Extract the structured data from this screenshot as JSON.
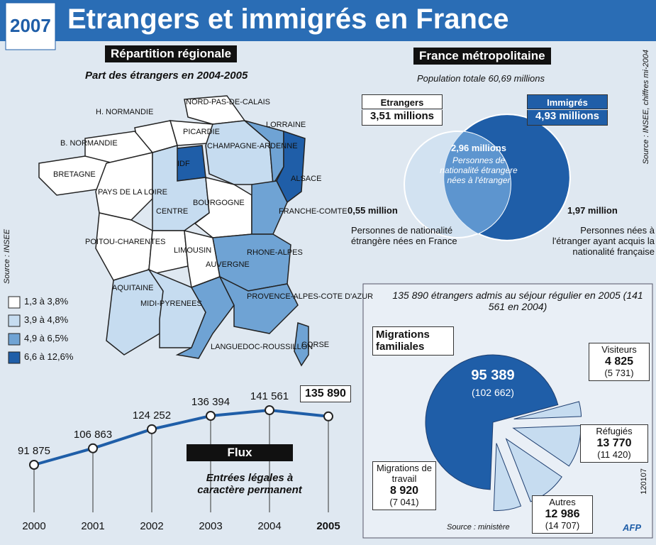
{
  "title": "Etrangers et immigrés en France",
  "logo": "2007",
  "map": {
    "heading": "Répartition régionale",
    "subtitle": "Part des étrangers en 2004-2005",
    "source": "Source : INSEE",
    "legend": [
      {
        "label": "1,3 à 3,8%",
        "color": "#ffffff"
      },
      {
        "label": "3,9 à 4,8%",
        "color": "#c6dcf0"
      },
      {
        "label": "4,9 à 6,5%",
        "color": "#6fa3d4"
      },
      {
        "label": "6,6 à 12,6%",
        "color": "#1f5ea8"
      }
    ],
    "regions": [
      {
        "name": "NORD-PAS-DE-CALAIS",
        "class": 0
      },
      {
        "name": "PICARDIE",
        "class": 0
      },
      {
        "name": "H. NORMANDIE",
        "class": 0
      },
      {
        "name": "B. NORMANDIE",
        "class": 0
      },
      {
        "name": "IDF",
        "class": 3
      },
      {
        "name": "CHAMPAGNE-ARDENNE",
        "class": 1
      },
      {
        "name": "LORRAINE",
        "class": 2
      },
      {
        "name": "ALSACE",
        "class": 3
      },
      {
        "name": "BRETAGNE",
        "class": 0
      },
      {
        "name": "PAYS DE LA LOIRE",
        "class": 0
      },
      {
        "name": "CENTRE",
        "class": 1
      },
      {
        "name": "BOURGOGNE",
        "class": 0
      },
      {
        "name": "FRANCHE-COMTE",
        "class": 2
      },
      {
        "name": "POITOU-CHARENTES",
        "class": 0
      },
      {
        "name": "LIMOUSIN",
        "class": 0
      },
      {
        "name": "AUVERGNE",
        "class": 0
      },
      {
        "name": "RHONE-ALPES",
        "class": 2
      },
      {
        "name": "AQUITAINE",
        "class": 1
      },
      {
        "name": "MIDI-PYRENEES",
        "class": 1
      },
      {
        "name": "LANGUEDOC-ROUSSILLON",
        "class": 2
      },
      {
        "name": "PROVENCE-ALPES-COTE D'AZUR",
        "class": 2
      },
      {
        "name": "CORSE",
        "class": 2
      }
    ]
  },
  "venn": {
    "heading": "France métropolitaine",
    "subtitle": "Population totale 60,69 millions",
    "source": "Source : INSEE, chiffres mi-2004",
    "sets": [
      {
        "name": "Etrangers",
        "value": 3.51,
        "value_label": "3,51 millions",
        "color": "#c6dcf0"
      },
      {
        "name": "Immigrés",
        "value": 4.93,
        "value_label": "4,93 millions",
        "color": "#1f5ea8"
      }
    ],
    "overlap": {
      "value_label": "2,96 millions",
      "text": "Personnes de nationalité étrangère nées à l'étranger"
    },
    "left_only": {
      "value_label": "0,55 million",
      "text": "Personnes de nationalité étrangère nées en France"
    },
    "right_only": {
      "value_label": "1,97 million",
      "text": "Personnes nées à l'étranger ayant acquis la nationalité française"
    }
  },
  "chart_data": [
    {
      "type": "line",
      "title": "Flux",
      "subtitle": "Entrées légales à caractère permanent",
      "color": "#1f5ea8",
      "categories": [
        "2000",
        "2001",
        "2002",
        "2003",
        "2004",
        "2005"
      ],
      "values": [
        91875,
        106863,
        124252,
        136394,
        141561,
        135890
      ],
      "value_labels": [
        "91 875",
        "106 863",
        "124 252",
        "136 394",
        "141 561",
        "135 890"
      ]
    },
    {
      "type": "pie",
      "title": "135 890 étrangers admis au séjour régulier en 2005 (141 561 en 2004)",
      "source": "Source : ministère",
      "credit": "AFP",
      "code": "120107",
      "categories": [
        "Migrations familiales",
        "Visiteurs",
        "Réfugiés",
        "Autres",
        "Migrations de travail"
      ],
      "values": [
        95389,
        4825,
        13770,
        12986,
        8920
      ],
      "value_labels": [
        "95 389",
        "4 825",
        "13 770",
        "12 986",
        "8 920"
      ],
      "previous_labels": [
        "(102 662)",
        "(5 731)",
        "(11 420)",
        "(14 707)",
        "(7 041)"
      ],
      "colors": [
        "#1f5ea8",
        "#c6dcf0",
        "#c6dcf0",
        "#c6dcf0",
        "#c6dcf0"
      ]
    }
  ]
}
